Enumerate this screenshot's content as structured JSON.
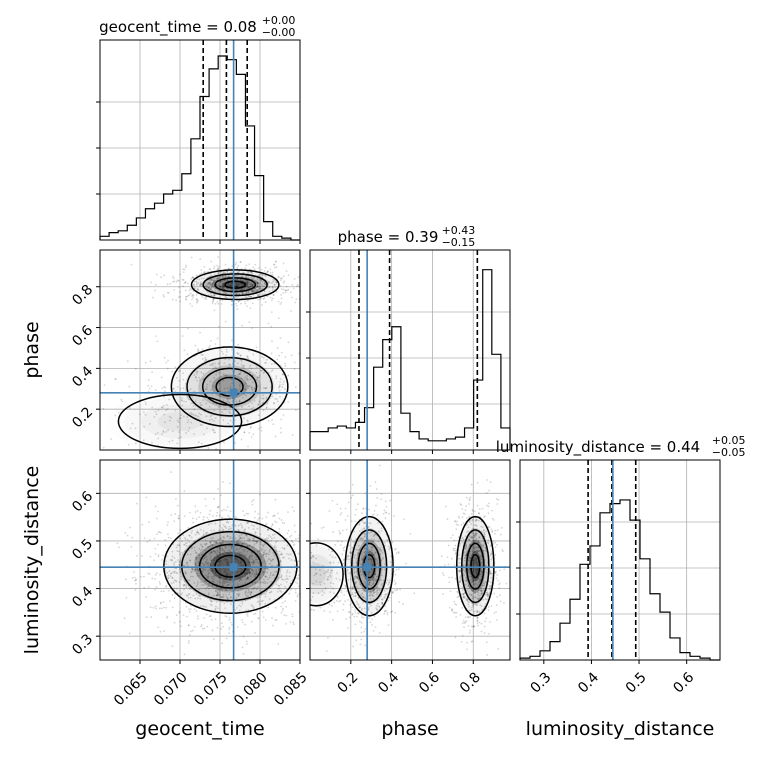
{
  "colors": {
    "truth": "#4682b4",
    "ink": "#000000",
    "grid": "#b0b0b0",
    "scatter": "#000000"
  },
  "chart_data": {
    "type": "corner",
    "parameters": [
      "geocent_time",
      "phase",
      "luminosity_distance"
    ],
    "axis_labels": [
      "geocent_time",
      "phase",
      "luminosity_distance"
    ],
    "titles": [
      {
        "param": "geocent_time",
        "text": "geocent_time = 0.08",
        "sup": "+0.00",
        "sub": "−0.00"
      },
      {
        "param": "phase",
        "text": "phase = 0.39",
        "sup": "+0.43",
        "sub": "−0.15"
      },
      {
        "param": "luminosity_distance",
        "text": "luminosity_distance = 0.44",
        "sup": "+0.05",
        "sub": "−0.05"
      }
    ],
    "ranges": {
      "geocent_time": [
        0.06,
        0.085
      ],
      "phase": [
        0.0,
        0.98
      ],
      "luminosity_distance": [
        0.25,
        0.67
      ]
    },
    "ticks": {
      "geocent_time": {
        "values": [
          0.065,
          0.07,
          0.075,
          0.08,
          0.085
        ],
        "labels": [
          "0.065",
          "0.070",
          "0.075",
          "0.080",
          "0.085"
        ]
      },
      "phase": {
        "values": [
          0.2,
          0.4,
          0.6,
          0.8
        ],
        "labels": [
          "0.2",
          "0.4",
          "0.6",
          "0.8"
        ]
      },
      "luminosity_distance": {
        "values": [
          0.3,
          0.4,
          0.5,
          0.6
        ],
        "labels": [
          "0.3",
          "0.4",
          "0.5",
          "0.6"
        ]
      }
    },
    "truths": {
      "geocent_time": 0.0767,
      "phase": 0.28,
      "luminosity_distance": 0.445
    },
    "quantiles": {
      "geocent_time": [
        0.0729,
        0.0758,
        0.0784
      ],
      "phase": [
        0.24,
        0.39,
        0.82
      ],
      "luminosity_distance": [
        0.393,
        0.443,
        0.493
      ]
    },
    "histograms": {
      "geocent_time": [
        0.02,
        0.04,
        0.05,
        0.08,
        0.12,
        0.17,
        0.2,
        0.25,
        0.27,
        0.36,
        0.55,
        0.78,
        0.93,
        1.0,
        0.98,
        0.9,
        0.62,
        0.35,
        0.1,
        0.02,
        0.01,
        0.0
      ],
      "phase": [
        0.1,
        0.1,
        0.12,
        0.13,
        0.12,
        0.15,
        0.23,
        0.45,
        0.6,
        0.67,
        0.2,
        0.1,
        0.06,
        0.05,
        0.05,
        0.06,
        0.07,
        0.12,
        0.38,
        0.98,
        0.52,
        0.12
      ],
      "luminosity_distance": [
        0.01,
        0.02,
        0.05,
        0.1,
        0.2,
        0.33,
        0.52,
        0.62,
        0.8,
        0.85,
        0.87,
        0.76,
        0.55,
        0.36,
        0.26,
        0.12,
        0.04,
        0.02,
        0.01,
        0.0
      ]
    },
    "density_modes": {
      "geocent_time_vs_phase": [
        {
          "x": 0.0769,
          "y": 0.81,
          "sx": 0.0021,
          "sy": 0.028,
          "w": 1.0
        },
        {
          "x": 0.0762,
          "y": 0.31,
          "sx": 0.0028,
          "sy": 0.075,
          "w": 0.55
        },
        {
          "x": 0.07,
          "y": 0.14,
          "sx": 0.0035,
          "sy": 0.06,
          "w": 0.12
        }
      ],
      "geocent_time_vs_luminosity_distance": [
        {
          "x": 0.0763,
          "y": 0.447,
          "sx": 0.0032,
          "sy": 0.038,
          "w": 1.0
        }
      ],
      "phase_vs_luminosity_distance": [
        {
          "x": 0.29,
          "y": 0.447,
          "sx": 0.045,
          "sy": 0.04,
          "w": 0.8
        },
        {
          "x": 0.81,
          "y": 0.447,
          "sx": 0.035,
          "sy": 0.04,
          "w": 1.0
        },
        {
          "x": 0.03,
          "y": 0.43,
          "sx": 0.06,
          "sy": 0.03,
          "w": 0.2
        }
      ]
    },
    "grid": true
  }
}
